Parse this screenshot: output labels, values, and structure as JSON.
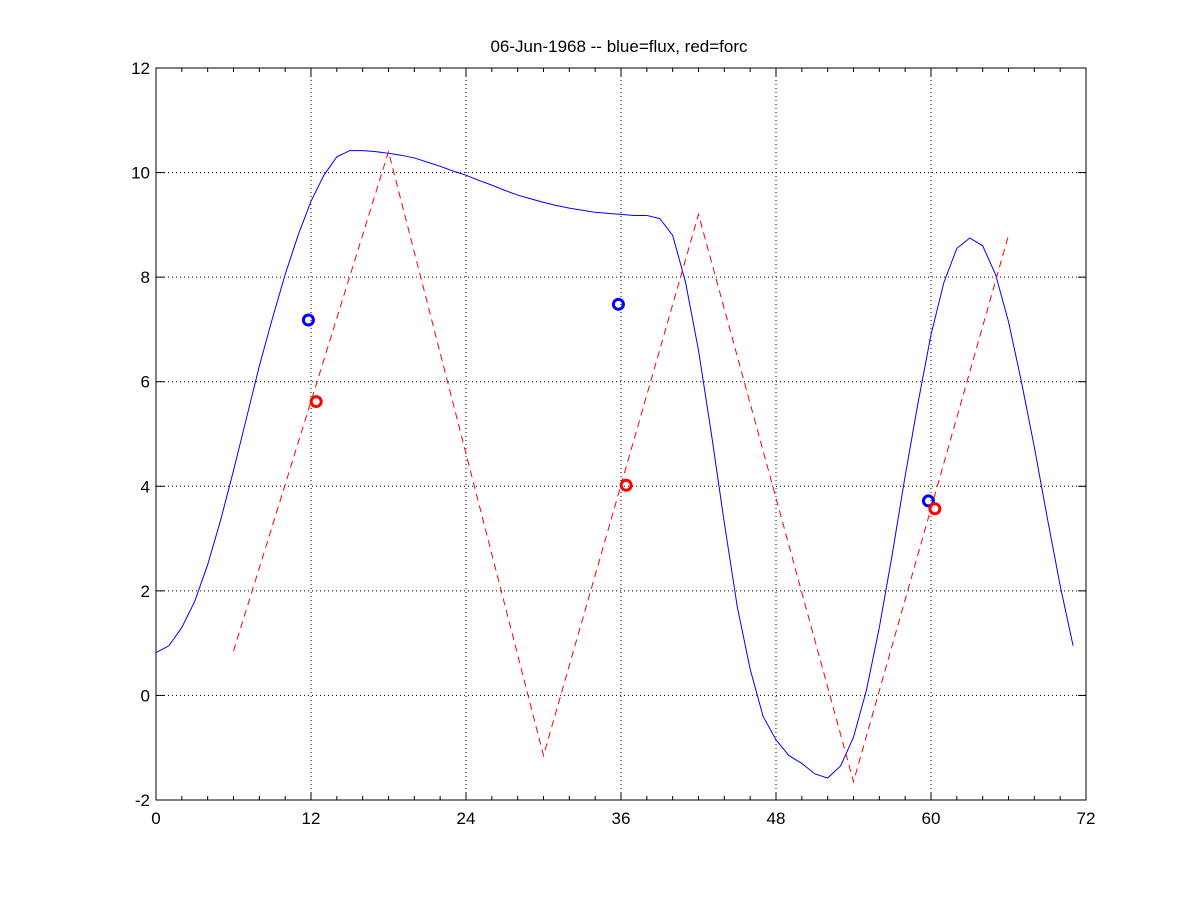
{
  "chart_data": {
    "type": "line",
    "title": "06-Jun-1968 -- blue=flux, red=forc",
    "xlabel": "",
    "ylabel": "",
    "xlim": [
      0,
      72
    ],
    "ylim": [
      -2,
      12
    ],
    "xticks": [
      0,
      12,
      24,
      36,
      48,
      60,
      72
    ],
    "yticks": [
      -2,
      0,
      2,
      4,
      6,
      8,
      10,
      12
    ],
    "grid": true,
    "colors": {
      "flux": "#0000ff",
      "forc": "#ff0000"
    },
    "series": [
      {
        "key": "flux",
        "style": "solid",
        "x": [
          0,
          1,
          2,
          3,
          4,
          5,
          6,
          7,
          8,
          9,
          10,
          11,
          12,
          13,
          14,
          15,
          16,
          17,
          18,
          19,
          20,
          21,
          22,
          23,
          24,
          25,
          26,
          27,
          28,
          29,
          30,
          31,
          32,
          33,
          34,
          35,
          36,
          37,
          38,
          39,
          40,
          41,
          42,
          43,
          44,
          45,
          46,
          47,
          48,
          49,
          50,
          51,
          52,
          53,
          54,
          55,
          56,
          57,
          58,
          59,
          60,
          61,
          62,
          63,
          64,
          65,
          66,
          67,
          68,
          69,
          70,
          71
        ],
        "values": [
          0.82,
          0.95,
          1.3,
          1.8,
          2.5,
          3.35,
          4.3,
          5.3,
          6.3,
          7.2,
          8.05,
          8.8,
          9.45,
          9.95,
          10.3,
          10.42,
          10.42,
          10.4,
          10.37,
          10.33,
          10.28,
          10.2,
          10.12,
          10.03,
          9.95,
          9.85,
          9.76,
          9.66,
          9.57,
          9.5,
          9.43,
          9.37,
          9.32,
          9.28,
          9.24,
          9.22,
          9.2,
          9.18,
          9.18,
          9.12,
          8.8,
          7.9,
          6.6,
          5.0,
          3.3,
          1.7,
          0.5,
          -0.4,
          -0.85,
          -1.15,
          -1.3,
          -1.5,
          -1.58,
          -1.35,
          -0.8,
          0.1,
          1.3,
          2.7,
          4.2,
          5.6,
          6.9,
          7.9,
          8.55,
          8.75,
          8.6,
          8.05,
          7.15,
          6.0,
          4.75,
          3.4,
          2.1,
          0.95
        ]
      },
      {
        "key": "forc",
        "style": "dashed",
        "x": [
          6,
          18,
          30,
          42,
          54,
          66
        ],
        "values": [
          0.85,
          10.4,
          -1.15,
          9.2,
          -1.65,
          8.8
        ]
      }
    ],
    "markers": [
      {
        "key": "flux",
        "x": [
          11.8,
          35.8,
          59.8
        ],
        "values": [
          7.18,
          7.48,
          3.72
        ]
      },
      {
        "key": "forc",
        "x": [
          12.4,
          36.4,
          60.3
        ],
        "values": [
          5.62,
          4.02,
          3.57
        ]
      }
    ]
  }
}
